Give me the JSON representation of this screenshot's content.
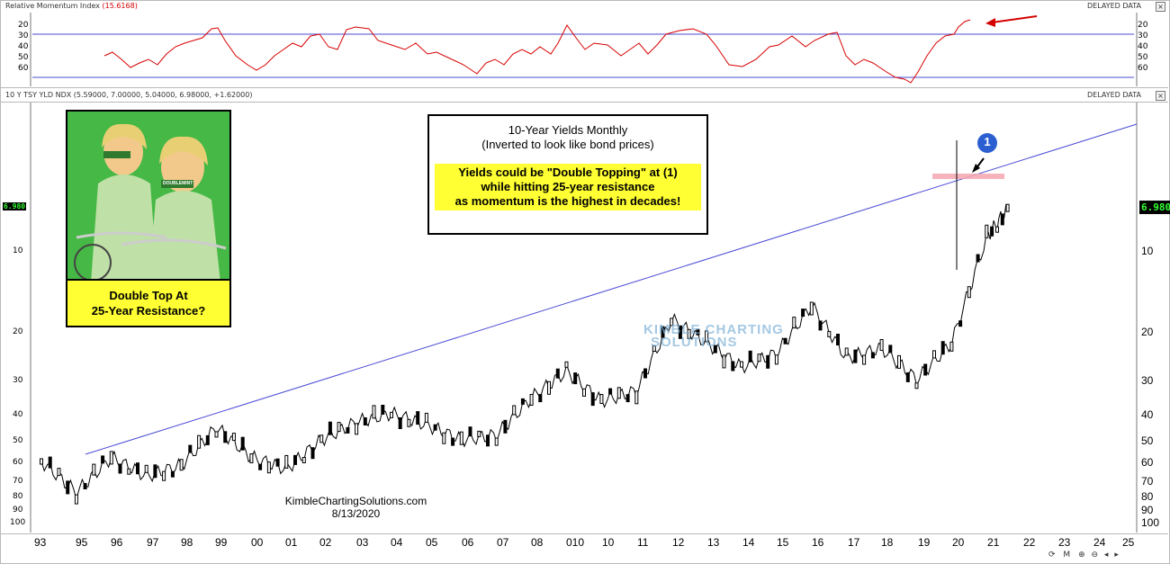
{
  "panes": {
    "top": {
      "title": "Relative Momentum Index",
      "value": "(15.6168)",
      "delayed": "DELAYED DATA",
      "ticks": [
        "20",
        "30",
        "40",
        "50",
        "60"
      ]
    },
    "main": {
      "title": "10 Y TSY YLD NDX (5.59000, 7.00000, 5.04000, 6.98000, +1.62000)",
      "delayed": "DELAYED DATA",
      "last_price": "6.980",
      "ticks": [
        "10",
        "20",
        "30",
        "40",
        "50",
        "60",
        "70",
        "80",
        "90",
        "100"
      ]
    }
  },
  "x_axis": {
    "labels": [
      "93",
      "95",
      "96",
      "97",
      "98",
      "99",
      "00",
      "01",
      "02",
      "03",
      "04",
      "05",
      "06",
      "07",
      "08",
      "010",
      "10",
      "11",
      "12",
      "13",
      "14",
      "15",
      "16",
      "17",
      "18",
      "19",
      "20",
      "21",
      "22",
      "23",
      "24",
      "25"
    ]
  },
  "callout": {
    "line1": "10-Year Yields Monthly",
    "line2": "(Inverted to look like bond prices)",
    "hl1": "Yields could be \"Double Topping\" at (1)",
    "hl2": "while hitting 25-year resistance",
    "hl3": "as momentum is the highest in decades!"
  },
  "ad": {
    "caption1": "Double Top At",
    "caption2": "25-Year Resistance?",
    "logo_text": "DOUBLEMINT"
  },
  "marker": {
    "label": "1"
  },
  "watermark": {
    "line1": "KIMBLE CHARTING",
    "line2": "SOLUTIONS"
  },
  "credit": {
    "site": "KimbleChartingSolutions.com",
    "date": "8/13/2020"
  },
  "chart_data": {
    "type": "line",
    "title": "10-Year Yields Monthly",
    "subtitle": "(Inverted to look like bond prices)",
    "y_scale": "inverted-log",
    "x": [
      1993,
      1994,
      1995,
      1996,
      1997,
      1998,
      1999,
      2000,
      2001,
      2002,
      2003,
      2004,
      2005,
      2006,
      2007,
      2008,
      2009,
      2010,
      2011,
      2012,
      2013,
      2014,
      2015,
      2016,
      2017,
      2018,
      2019,
      2020,
      2020.6
    ],
    "series": [
      {
        "name": "10 Y TSY YLD NDX",
        "values": [
          60,
          78,
          58,
          68,
          62,
          45,
          58,
          64,
          50,
          43,
          40,
          44,
          50,
          48,
          35,
          28,
          36,
          33,
          18,
          22,
          27,
          24,
          16,
          25,
          23,
          30,
          22,
          9,
          7
        ]
      },
      {
        "name": "Relative Momentum Index",
        "values": [
          50,
          55,
          45,
          60,
          40,
          25,
          55,
          60,
          30,
          30,
          45,
          50,
          70,
          60,
          35,
          30,
          40,
          40,
          30,
          25,
          55,
          45,
          30,
          60,
          55,
          70,
          50,
          30,
          15.6
        ]
      }
    ],
    "ylim": [
      100,
      5.5
    ]
  },
  "colors": {
    "trend": "#4b4bd6",
    "rmi": "#d80000",
    "callout_bg": "#ffff33",
    "price_text": "#33ff33",
    "marker": "#2b5fd1"
  }
}
